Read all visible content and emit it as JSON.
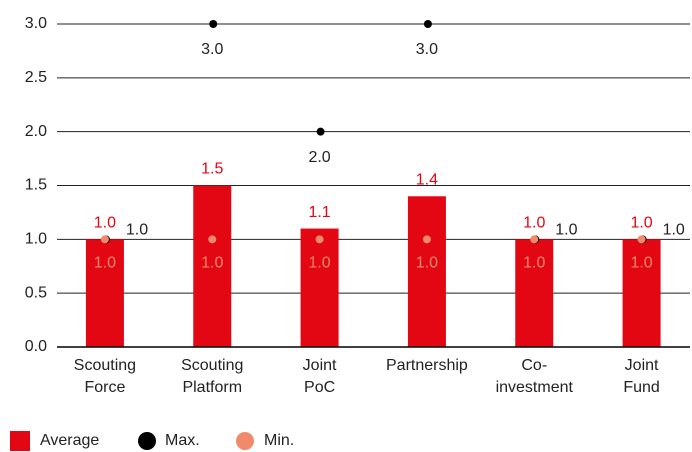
{
  "chart_data": {
    "type": "bar",
    "categories": [
      [
        "Scouting",
        "Force"
      ],
      [
        "Scouting",
        "Platform"
      ],
      [
        "Joint",
        "PoC"
      ],
      [
        "Partnership"
      ],
      [
        "Co-",
        "investment"
      ],
      [
        "Joint",
        "Fund"
      ]
    ],
    "series": [
      {
        "name": "Average",
        "color": "#e30613",
        "values": [
          1.0,
          1.5,
          1.1,
          1.4,
          1.0,
          1.0
        ],
        "value_labels": [
          "1.0",
          "1.5",
          "1.1",
          "1.4",
          "1.0",
          "1.0"
        ]
      },
      {
        "name": "Max.",
        "color": "#000000",
        "values": [
          1.0,
          3.0,
          2.0,
          3.0,
          1.0,
          1.0
        ],
        "value_labels": [
          "1.0",
          "3.0",
          "2.0",
          "3.0",
          "1.0",
          "1.0"
        ]
      },
      {
        "name": "Min.",
        "color": "#f08a6a",
        "values": [
          1.0,
          1.0,
          1.0,
          1.0,
          1.0,
          1.0
        ],
        "value_labels": [
          "1.0",
          "1.0",
          "1.0",
          "1.0",
          "1.0",
          "1.0"
        ]
      }
    ],
    "ylim": [
      0,
      3
    ],
    "yticks": [
      {
        "value": 0,
        "label": "0.0"
      },
      {
        "value": 0.5,
        "label": "0.5"
      },
      {
        "value": 1,
        "label": "1.0"
      },
      {
        "value": 1.5,
        "label": "1.5"
      },
      {
        "value": 2,
        "label": "2.0"
      },
      {
        "value": 2.5,
        "label": "2.5"
      },
      {
        "value": 3,
        "label": "3.0"
      }
    ],
    "grid": true
  }
}
